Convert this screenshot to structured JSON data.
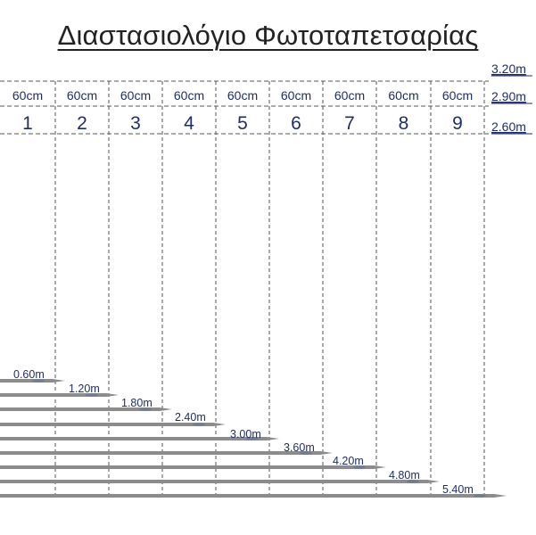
{
  "title": "Διαστασιολόγιο Φωτοταπετσαρίας",
  "heights": [
    "3.20m",
    "2.90m",
    "2.60m"
  ],
  "panel_width_label": "60cm",
  "panels": [
    "1",
    "2",
    "3",
    "4",
    "5",
    "6",
    "7",
    "8",
    "9"
  ],
  "widths": [
    "0.60m",
    "1.20m",
    "1.80m",
    "2.40m",
    "3.00m",
    "3.60m",
    "4.20m",
    "4.80m",
    "5.40m"
  ],
  "colors": {
    "text": "#1f2e6b",
    "line": "#555555",
    "bar": "#8c8c8c",
    "title": "#222222"
  }
}
